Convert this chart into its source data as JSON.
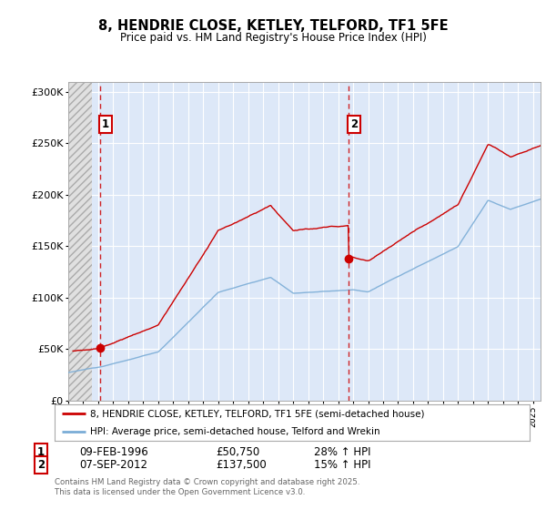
{
  "title_line1": "8, HENDRIE CLOSE, KETLEY, TELFORD, TF1 5FE",
  "title_line2": "Price paid vs. HM Land Registry's House Price Index (HPI)",
  "legend_line1": "8, HENDRIE CLOSE, KETLEY, TELFORD, TF1 5FE (semi-detached house)",
  "legend_line2": "HPI: Average price, semi-detached house, Telford and Wrekin",
  "sale1_label": "1",
  "sale1_date": "09-FEB-1996",
  "sale1_price": "£50,750",
  "sale1_hpi": "28% ↑ HPI",
  "sale1_year": 1996.1,
  "sale1_value": 50750,
  "sale2_label": "2",
  "sale2_date": "07-SEP-2012",
  "sale2_price": "£137,500",
  "sale2_hpi": "15% ↑ HPI",
  "sale2_year": 2012.67,
  "sale2_value": 137500,
  "copyright": "Contains HM Land Registry data © Crown copyright and database right 2025.\nThis data is licensed under the Open Government Licence v3.0.",
  "red_color": "#cc0000",
  "blue_color": "#7aacd6",
  "plot_bg_color": "#dde8f8",
  "hatch_bg": "#e8e8e8",
  "ylim_max": 310000,
  "ylim_min": 0,
  "xmin": 1994,
  "xmax": 2025.5,
  "hatch_end": 1995.6
}
